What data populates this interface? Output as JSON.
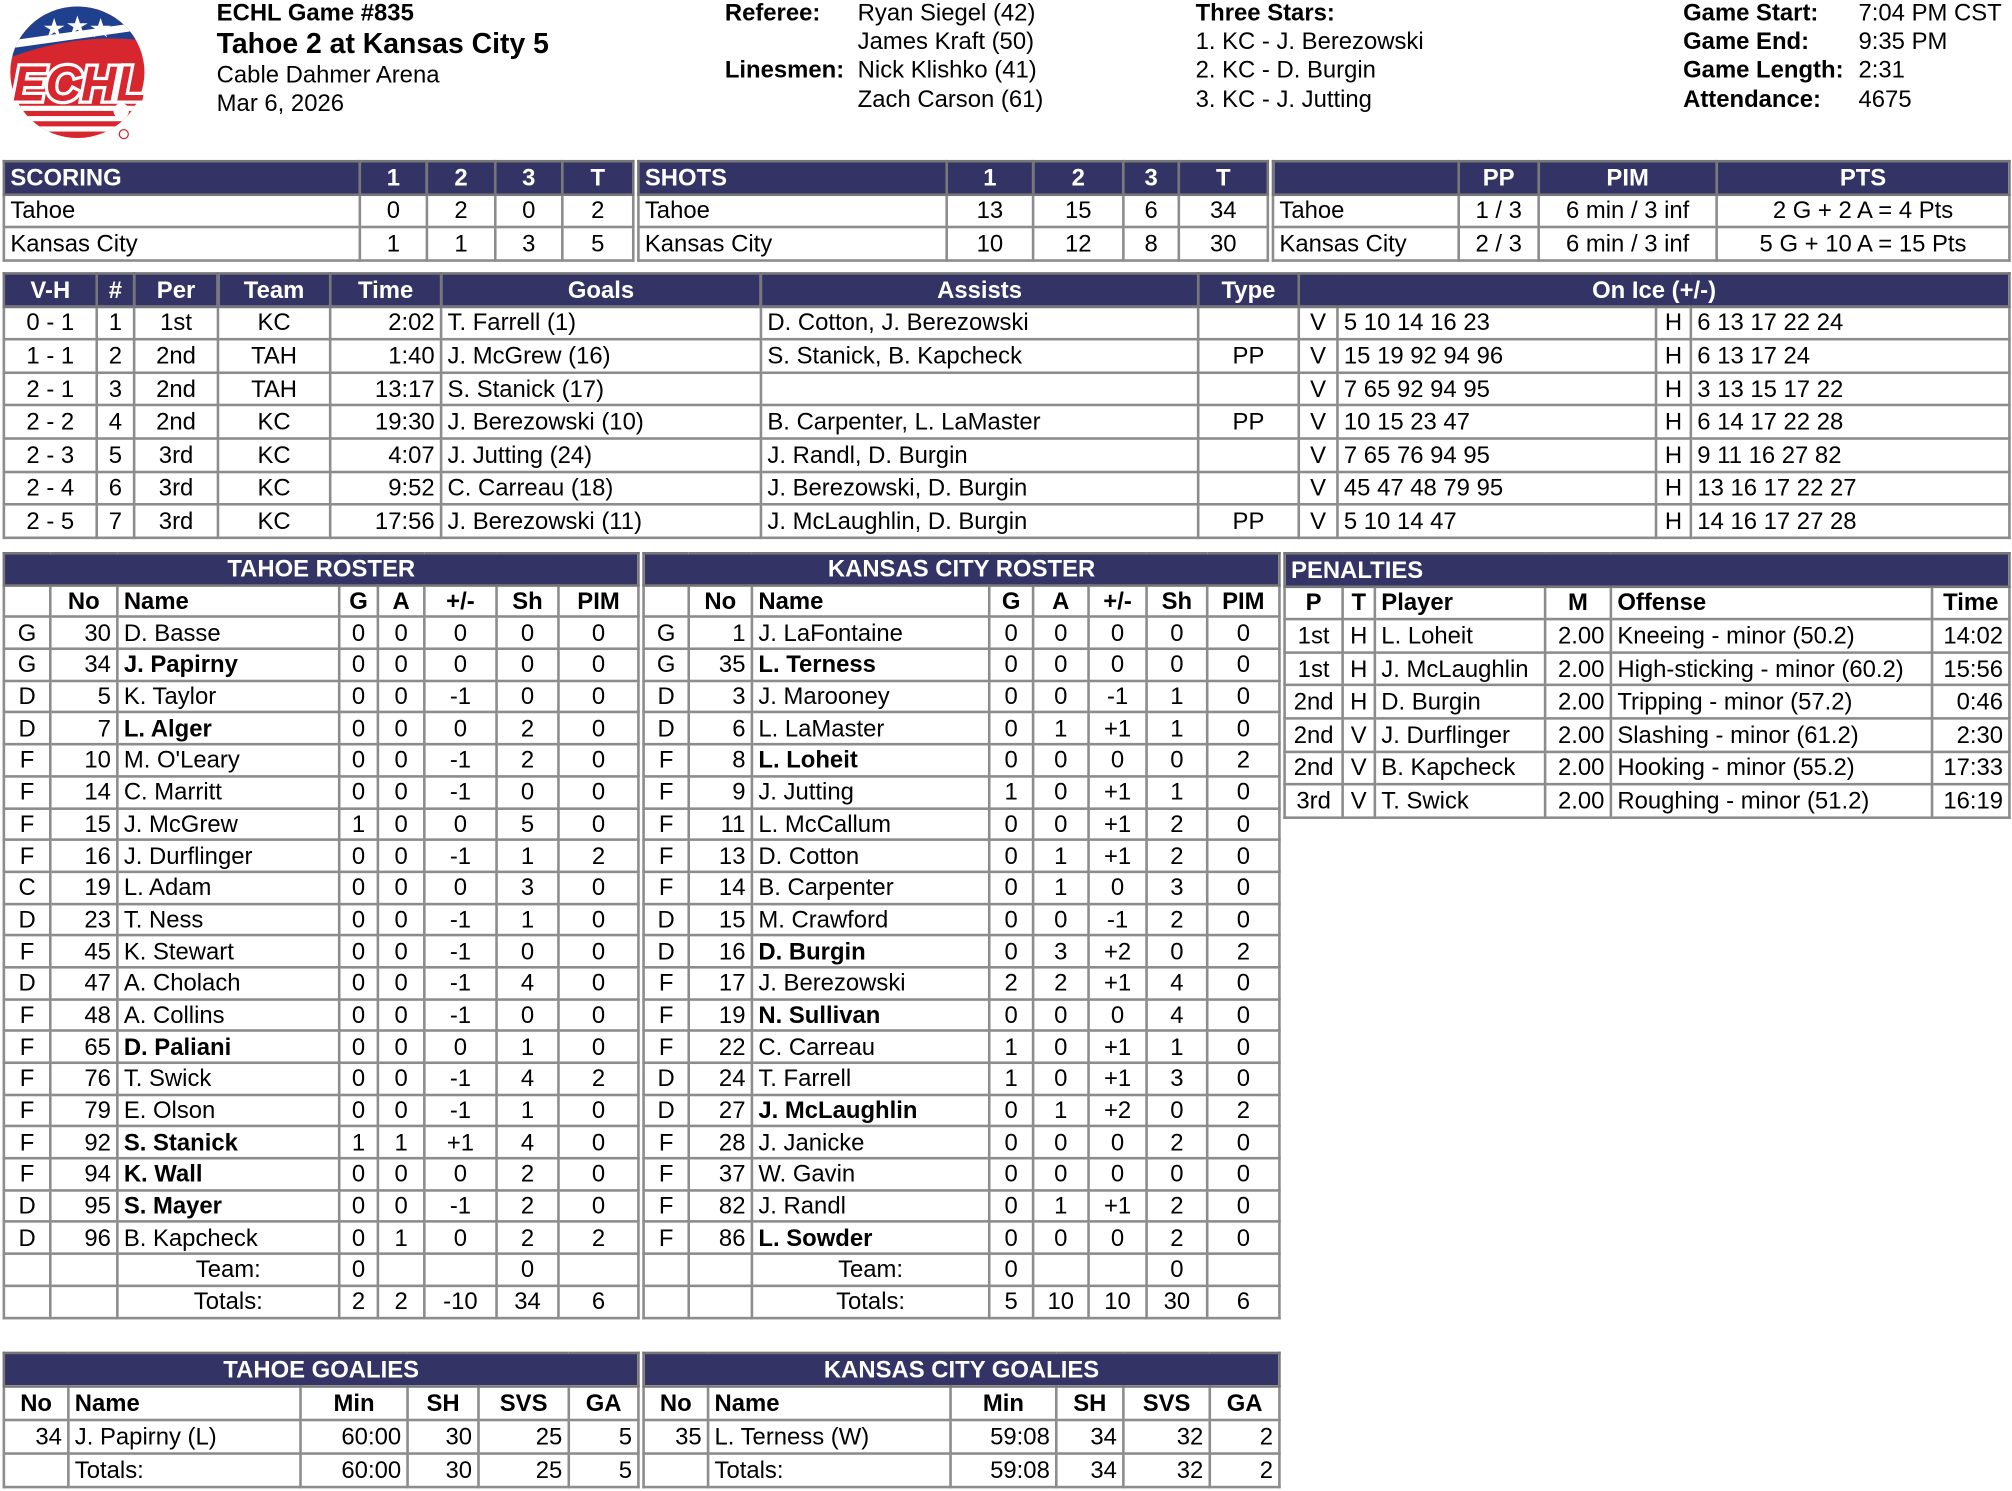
{
  "logo": {
    "text": "ECHL",
    "colors": {
      "blue": "#1f3f8f",
      "red": "#d8262e"
    }
  },
  "game": {
    "number": "ECHL Game #835",
    "title": "Tahoe 2 at Kansas City 5",
    "arena": "Cable Dahmer Arena",
    "date": "Mar 6, 2026"
  },
  "officials": {
    "referee_label": "Referee:",
    "referees": [
      "Ryan Siegel (42)",
      "James Kraft (50)"
    ],
    "linesmen_label": "Linesmen:",
    "linesmen": [
      "Nick Klishko (41)",
      "Zach Carson (61)"
    ]
  },
  "three_stars": {
    "label": "Three Stars:",
    "stars": [
      "1. KC - J. Berezowski",
      "2. KC - D. Burgin",
      "3. KC - J. Jutting"
    ]
  },
  "game_info": {
    "labels": [
      "Game Start:",
      "Game End:",
      "Game Length:",
      "Attendance:"
    ],
    "values": [
      "7:04 PM CST",
      "9:35 PM",
      "2:31",
      "4675"
    ]
  },
  "colors": {
    "header_bg": "#333366",
    "border": "#8c8c8c"
  },
  "scoring": {
    "header": [
      "SCORING",
      "1",
      "2",
      "3",
      "T"
    ],
    "rows": [
      [
        "Tahoe",
        "0",
        "2",
        "0",
        "2"
      ],
      [
        "Kansas City",
        "1",
        "1",
        "3",
        "5"
      ]
    ]
  },
  "shots": {
    "header": [
      "SHOTS",
      "1",
      "2",
      "3",
      "T"
    ],
    "rows": [
      [
        "Tahoe",
        "13",
        "15",
        "6",
        "34"
      ],
      [
        "Kansas City",
        "10",
        "12",
        "8",
        "30"
      ]
    ]
  },
  "special": {
    "header": [
      "",
      "PP",
      "PIM",
      "PTS"
    ],
    "rows": [
      [
        "Tahoe",
        "1 / 3",
        "6 min / 3 inf",
        "2 G + 2 A = 4 Pts"
      ],
      [
        "Kansas City",
        "2 / 3",
        "6 min / 3 inf",
        "5 G + 10 A = 15 Pts"
      ]
    ]
  },
  "goals": {
    "header": [
      "V-H",
      "#",
      "Per",
      "Team",
      "Time",
      "Goals",
      "Assists",
      "Type",
      "On Ice (+/-)"
    ],
    "rows": [
      [
        "0 - 1",
        "1",
        "1st",
        "KC",
        "2:02",
        "T. Farrell (1)",
        "D. Cotton, J. Berezowski",
        "",
        "V",
        "5 10 14 16 23",
        "H",
        "6 13 17 22 24"
      ],
      [
        "1 - 1",
        "2",
        "2nd",
        "TAH",
        "1:40",
        "J. McGrew (16)",
        "S. Stanick, B. Kapcheck",
        "PP",
        "V",
        "15 19 92 94 96",
        "H",
        "6 13 17 24"
      ],
      [
        "2 - 1",
        "3",
        "2nd",
        "TAH",
        "13:17",
        "S. Stanick (17)",
        "",
        "",
        "V",
        "7 65 92 94 95",
        "H",
        "3 13 15 17 22"
      ],
      [
        "2 - 2",
        "4",
        "2nd",
        "KC",
        "19:30",
        "J. Berezowski (10)",
        "B. Carpenter, L. LaMaster",
        "PP",
        "V",
        "10 15 23 47",
        "H",
        "6 14 17 22 28"
      ],
      [
        "2 - 3",
        "5",
        "3rd",
        "KC",
        "4:07",
        "J. Jutting (24)",
        "J. Randl, D. Burgin",
        "",
        "V",
        "7 65 76 94 95",
        "H",
        "9 11 16 27 82"
      ],
      [
        "2 - 4",
        "6",
        "3rd",
        "KC",
        "9:52",
        "C. Carreau (18)",
        "J. Berezowski, D. Burgin",
        "",
        "V",
        "45 47 48 79 95",
        "H",
        "13 16 17 22 27"
      ],
      [
        "2 - 5",
        "7",
        "3rd",
        "KC",
        "17:56",
        "J. Berezowski (11)",
        "J. McLaughlin, D. Burgin",
        "PP",
        "V",
        "5 10 14 47",
        "H",
        "14 16 17 27 28"
      ]
    ]
  },
  "tahoe_roster": {
    "title": "TAHOE ROSTER",
    "header": [
      "",
      "No",
      "Name",
      "G",
      "A",
      "+/-",
      "Sh",
      "PIM"
    ],
    "rows": [
      [
        "G",
        "30",
        "D. Basse",
        "0",
        "0",
        "0",
        "0",
        "0",
        false
      ],
      [
        "G",
        "34",
        "J. Papirny",
        "0",
        "0",
        "0",
        "0",
        "0",
        true
      ],
      [
        "D",
        "5",
        "K. Taylor",
        "0",
        "0",
        "-1",
        "0",
        "0",
        false
      ],
      [
        "D",
        "7",
        "L. Alger",
        "0",
        "0",
        "0",
        "2",
        "0",
        true
      ],
      [
        "F",
        "10",
        "M. O'Leary",
        "0",
        "0",
        "-1",
        "2",
        "0",
        false
      ],
      [
        "F",
        "14",
        "C. Marritt",
        "0",
        "0",
        "-1",
        "0",
        "0",
        false
      ],
      [
        "F",
        "15",
        "J. McGrew",
        "1",
        "0",
        "0",
        "5",
        "0",
        false
      ],
      [
        "F",
        "16",
        "J. Durflinger",
        "0",
        "0",
        "-1",
        "1",
        "2",
        false
      ],
      [
        "C",
        "19",
        "L. Adam",
        "0",
        "0",
        "0",
        "3",
        "0",
        false
      ],
      [
        "D",
        "23",
        "T. Ness",
        "0",
        "0",
        "-1",
        "1",
        "0",
        false
      ],
      [
        "F",
        "45",
        "K. Stewart",
        "0",
        "0",
        "-1",
        "0",
        "0",
        false
      ],
      [
        "D",
        "47",
        "A. Cholach",
        "0",
        "0",
        "-1",
        "4",
        "0",
        false
      ],
      [
        "F",
        "48",
        "A. Collins",
        "0",
        "0",
        "-1",
        "0",
        "0",
        false
      ],
      [
        "F",
        "65",
        "D. Paliani",
        "0",
        "0",
        "0",
        "1",
        "0",
        true
      ],
      [
        "F",
        "76",
        "T. Swick",
        "0",
        "0",
        "-1",
        "4",
        "2",
        false
      ],
      [
        "F",
        "79",
        "E. Olson",
        "0",
        "0",
        "-1",
        "1",
        "0",
        false
      ],
      [
        "F",
        "92",
        "S. Stanick",
        "1",
        "1",
        "+1",
        "4",
        "0",
        true
      ],
      [
        "F",
        "94",
        "K. Wall",
        "0",
        "0",
        "0",
        "2",
        "0",
        true
      ],
      [
        "D",
        "95",
        "S. Mayer",
        "0",
        "0",
        "-1",
        "2",
        "0",
        true
      ],
      [
        "D",
        "96",
        "B. Kapcheck",
        "0",
        "1",
        "0",
        "2",
        "2",
        false
      ],
      [
        "",
        "",
        "Team:",
        "0",
        "",
        "",
        "0",
        "",
        false
      ],
      [
        "",
        "",
        "Totals:",
        "2",
        "2",
        "-10",
        "34",
        "6",
        false
      ]
    ]
  },
  "kc_roster": {
    "title": "KANSAS CITY ROSTER",
    "header": [
      "",
      "No",
      "Name",
      "G",
      "A",
      "+/-",
      "Sh",
      "PIM"
    ],
    "rows": [
      [
        "G",
        "1",
        "J. LaFontaine",
        "0",
        "0",
        "0",
        "0",
        "0",
        false
      ],
      [
        "G",
        "35",
        "L. Terness",
        "0",
        "0",
        "0",
        "0",
        "0",
        true
      ],
      [
        "D",
        "3",
        "J. Marooney",
        "0",
        "0",
        "-1",
        "1",
        "0",
        false
      ],
      [
        "D",
        "6",
        "L. LaMaster",
        "0",
        "1",
        "+1",
        "1",
        "0",
        false
      ],
      [
        "F",
        "8",
        "L. Loheit",
        "0",
        "0",
        "0",
        "0",
        "2",
        true
      ],
      [
        "F",
        "9",
        "J. Jutting",
        "1",
        "0",
        "+1",
        "1",
        "0",
        false
      ],
      [
        "F",
        "11",
        "L. McCallum",
        "0",
        "0",
        "+1",
        "2",
        "0",
        false
      ],
      [
        "F",
        "13",
        "D. Cotton",
        "0",
        "1",
        "+1",
        "2",
        "0",
        false
      ],
      [
        "F",
        "14",
        "B. Carpenter",
        "0",
        "1",
        "0",
        "3",
        "0",
        false
      ],
      [
        "D",
        "15",
        "M. Crawford",
        "0",
        "0",
        "-1",
        "2",
        "0",
        false
      ],
      [
        "D",
        "16",
        "D. Burgin",
        "0",
        "3",
        "+2",
        "0",
        "2",
        true
      ],
      [
        "F",
        "17",
        "J. Berezowski",
        "2",
        "2",
        "+1",
        "4",
        "0",
        false
      ],
      [
        "F",
        "19",
        "N. Sullivan",
        "0",
        "0",
        "0",
        "4",
        "0",
        true
      ],
      [
        "F",
        "22",
        "C. Carreau",
        "1",
        "0",
        "+1",
        "1",
        "0",
        false
      ],
      [
        "D",
        "24",
        "T. Farrell",
        "1",
        "0",
        "+1",
        "3",
        "0",
        false
      ],
      [
        "D",
        "27",
        "J. McLaughlin",
        "0",
        "1",
        "+2",
        "0",
        "2",
        true
      ],
      [
        "F",
        "28",
        "J. Janicke",
        "0",
        "0",
        "0",
        "2",
        "0",
        false
      ],
      [
        "F",
        "37",
        "W. Gavin",
        "0",
        "0",
        "0",
        "0",
        "0",
        false
      ],
      [
        "F",
        "82",
        "J. Randl",
        "0",
        "1",
        "+1",
        "2",
        "0",
        false
      ],
      [
        "F",
        "86",
        "L. Sowder",
        "0",
        "0",
        "0",
        "2",
        "0",
        true
      ],
      [
        "",
        "",
        "Team:",
        "0",
        "",
        "",
        "0",
        "",
        false
      ],
      [
        "",
        "",
        "Totals:",
        "5",
        "10",
        "10",
        "30",
        "6",
        false
      ]
    ]
  },
  "penalties": {
    "title": "PENALTIES",
    "header": [
      "P",
      "T",
      "Player",
      "M",
      "Offense",
      "Time"
    ],
    "rows": [
      [
        "1st",
        "H",
        "L. Loheit",
        "2.00",
        "Kneeing - minor (50.2)",
        "14:02"
      ],
      [
        "1st",
        "H",
        "J. McLaughlin",
        "2.00",
        "High-sticking - minor (60.2)",
        "15:56"
      ],
      [
        "2nd",
        "H",
        "D. Burgin",
        "2.00",
        "Tripping - minor (57.2)",
        "0:46"
      ],
      [
        "2nd",
        "V",
        "J. Durflinger",
        "2.00",
        "Slashing - minor (61.2)",
        "2:30"
      ],
      [
        "2nd",
        "V",
        "B. Kapcheck",
        "2.00",
        "Hooking - minor (55.2)",
        "17:33"
      ],
      [
        "3rd",
        "V",
        "T. Swick",
        "2.00",
        "Roughing - minor (51.2)",
        "16:19"
      ]
    ]
  },
  "tahoe_goalies": {
    "title": "TAHOE GOALIES",
    "header": [
      "No",
      "Name",
      "Min",
      "SH",
      "SVS",
      "GA"
    ],
    "rows": [
      [
        "34",
        "J. Papirny (L)",
        "60:00",
        "30",
        "25",
        "5"
      ],
      [
        "",
        "Totals:",
        "60:00",
        "30",
        "25",
        "5"
      ]
    ]
  },
  "kc_goalies": {
    "title": "KANSAS CITY GOALIES",
    "header": [
      "No",
      "Name",
      "Min",
      "SH",
      "SVS",
      "GA"
    ],
    "rows": [
      [
        "35",
        "L. Terness (W)",
        "59:08",
        "34",
        "32",
        "2"
      ],
      [
        "",
        "Totals:",
        "59:08",
        "34",
        "32",
        "2"
      ]
    ]
  }
}
